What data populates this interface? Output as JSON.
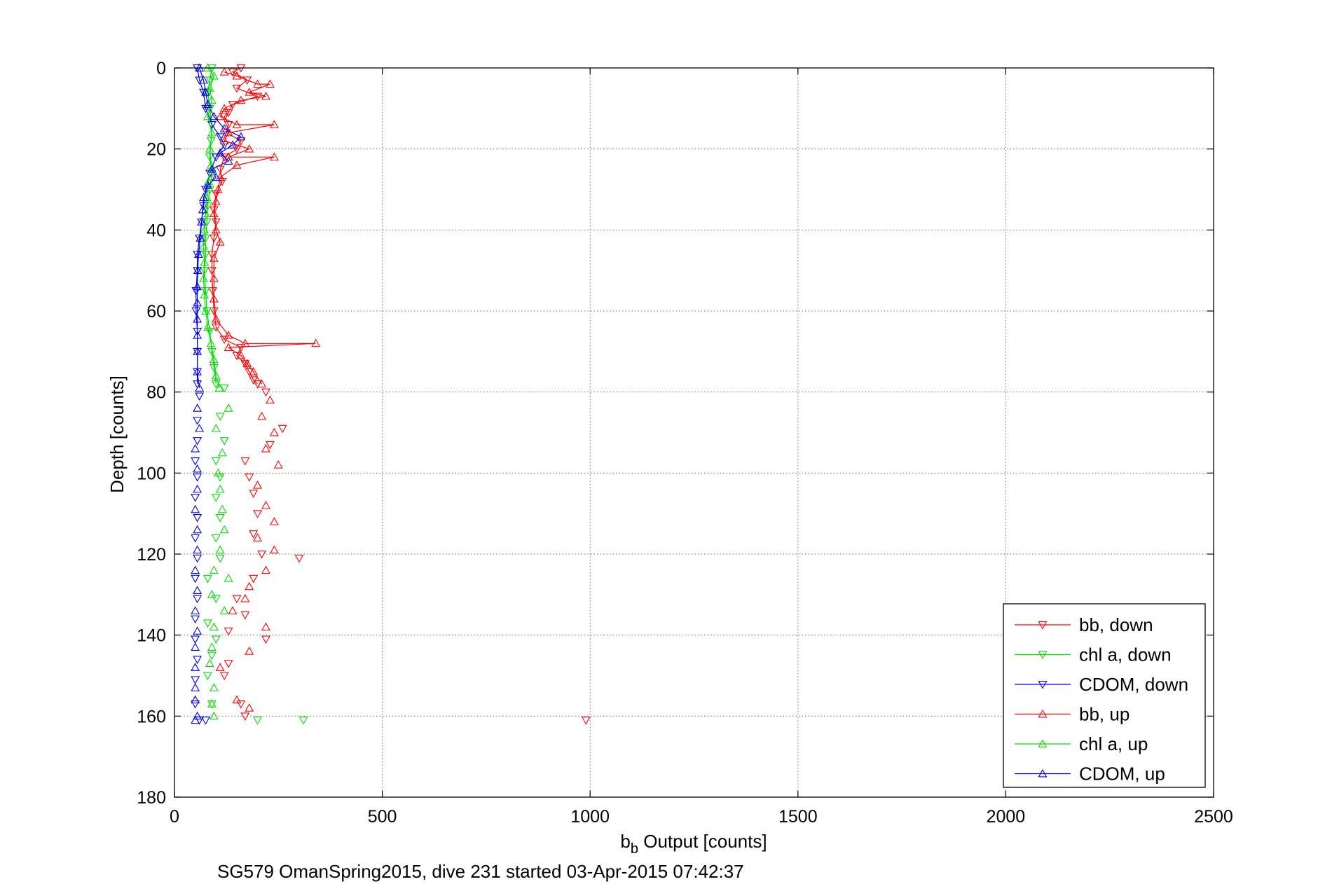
{
  "chart_data": {
    "type": "line",
    "xlabel_base": "b",
    "xlabel_sub": "b",
    "xlabel_rest": " Output [counts]",
    "ylabel": "Depth [counts]",
    "footer": "SG579 OmanSpring2015, dive 231 started 03-Apr-2015 07:42:37",
    "xlim": [
      0,
      2500
    ],
    "ylim": [
      0,
      180
    ],
    "y_reversed": true,
    "grid": true,
    "legend_position": "bottom-right",
    "x_ticks": [
      "0",
      "500",
      "1000",
      "1500",
      "2000",
      "2500"
    ],
    "y_ticks": [
      "0",
      "20",
      "40",
      "60",
      "80",
      "100",
      "120",
      "140",
      "160",
      "180"
    ],
    "series": [
      {
        "name": "bb, down",
        "color": "#ff0000",
        "marker": "triangle-down",
        "connected_points": [
          [
            160,
            0
          ],
          [
            140,
            1
          ],
          [
            175,
            3
          ],
          [
            150,
            5
          ],
          [
            200,
            7
          ],
          [
            140,
            9
          ],
          [
            130,
            11
          ],
          [
            120,
            12
          ],
          [
            130,
            14
          ],
          [
            125,
            16
          ],
          [
            160,
            18
          ],
          [
            150,
            20
          ],
          [
            120,
            22
          ],
          [
            110,
            25
          ],
          [
            115,
            28
          ],
          [
            100,
            31
          ],
          [
            95,
            35
          ],
          [
            100,
            38
          ],
          [
            95,
            42
          ],
          [
            90,
            46
          ],
          [
            90,
            50
          ],
          [
            92,
            55
          ],
          [
            95,
            60
          ],
          [
            100,
            64
          ],
          [
            120,
            67
          ],
          [
            160,
            69
          ],
          [
            150,
            71
          ],
          [
            170,
            73
          ],
          [
            180,
            75
          ],
          [
            190,
            77
          ],
          [
            200,
            78
          ]
        ],
        "scatter_points": [
          [
            220,
            80
          ],
          [
            260,
            89
          ],
          [
            230,
            93
          ],
          [
            170,
            97
          ],
          [
            180,
            101
          ],
          [
            190,
            105
          ],
          [
            200,
            110
          ],
          [
            190,
            115
          ],
          [
            210,
            120
          ],
          [
            300,
            121
          ],
          [
            190,
            126
          ],
          [
            150,
            131
          ],
          [
            170,
            135
          ],
          [
            130,
            139
          ],
          [
            220,
            141
          ],
          [
            130,
            147
          ],
          [
            120,
            150
          ],
          [
            160,
            157
          ],
          [
            170,
            160
          ],
          [
            990,
            161
          ]
        ]
      },
      {
        "name": "chl a, down",
        "color": "#00dd00",
        "marker": "triangle-down",
        "connected_points": [
          [
            90,
            0
          ],
          [
            85,
            3
          ],
          [
            80,
            6
          ],
          [
            85,
            10
          ],
          [
            90,
            14
          ],
          [
            88,
            18
          ],
          [
            85,
            22
          ],
          [
            90,
            26
          ],
          [
            85,
            30
          ],
          [
            80,
            34
          ],
          [
            78,
            38
          ],
          [
            75,
            42
          ],
          [
            75,
            46
          ],
          [
            72,
            50
          ],
          [
            75,
            55
          ],
          [
            78,
            60
          ],
          [
            85,
            65
          ],
          [
            90,
            70
          ],
          [
            95,
            74
          ],
          [
            100,
            78
          ]
        ],
        "scatter_points": [
          [
            120,
            79
          ],
          [
            110,
            86
          ],
          [
            120,
            92
          ],
          [
            100,
            97
          ],
          [
            110,
            101
          ],
          [
            100,
            106
          ],
          [
            110,
            111
          ],
          [
            100,
            116
          ],
          [
            110,
            121
          ],
          [
            80,
            126
          ],
          [
            100,
            131
          ],
          [
            80,
            137
          ],
          [
            100,
            141
          ],
          [
            90,
            145
          ],
          [
            80,
            150
          ],
          [
            90,
            157
          ],
          [
            200,
            161
          ],
          [
            310,
            161
          ]
        ]
      },
      {
        "name": "CDOM, down",
        "color": "#0000ee",
        "marker": "triangle-down",
        "connected_points": [
          [
            55,
            0
          ],
          [
            60,
            3
          ],
          [
            70,
            6
          ],
          [
            75,
            10
          ],
          [
            90,
            14
          ],
          [
            110,
            17
          ],
          [
            120,
            19
          ],
          [
            100,
            22
          ],
          [
            85,
            26
          ],
          [
            75,
            30
          ],
          [
            70,
            34
          ],
          [
            65,
            38
          ],
          [
            60,
            42
          ],
          [
            55,
            46
          ],
          [
            55,
            50
          ],
          [
            52,
            55
          ],
          [
            52,
            60
          ],
          [
            55,
            65
          ],
          [
            55,
            70
          ],
          [
            55,
            75
          ],
          [
            55,
            78
          ]
        ],
        "scatter_points": [
          [
            60,
            81
          ],
          [
            55,
            87
          ],
          [
            55,
            92
          ],
          [
            50,
            97
          ],
          [
            55,
            101
          ],
          [
            50,
            106
          ],
          [
            55,
            111
          ],
          [
            50,
            116
          ],
          [
            55,
            121
          ],
          [
            50,
            126
          ],
          [
            55,
            131
          ],
          [
            50,
            136
          ],
          [
            50,
            141
          ],
          [
            55,
            146
          ],
          [
            50,
            151
          ],
          [
            50,
            157
          ],
          [
            75,
            161
          ],
          [
            60,
            161
          ]
        ]
      },
      {
        "name": "bb, up",
        "color": "#ff0000",
        "marker": "triangle-up",
        "connected_points": [
          [
            120,
            1
          ],
          [
            150,
            2
          ],
          [
            200,
            4
          ],
          [
            230,
            4
          ],
          [
            180,
            6
          ],
          [
            220,
            7
          ],
          [
            160,
            8
          ],
          [
            120,
            10
          ],
          [
            110,
            12
          ],
          [
            150,
            14
          ],
          [
            240,
            14
          ],
          [
            130,
            16
          ],
          [
            120,
            18
          ],
          [
            180,
            20
          ],
          [
            130,
            22
          ],
          [
            240,
            22
          ],
          [
            150,
            24
          ],
          [
            110,
            27
          ],
          [
            105,
            30
          ],
          [
            100,
            33
          ],
          [
            95,
            36
          ],
          [
            100,
            40
          ],
          [
            110,
            43
          ],
          [
            95,
            47
          ],
          [
            95,
            52
          ],
          [
            95,
            57
          ],
          [
            100,
            62
          ],
          [
            130,
            66
          ],
          [
            170,
            68
          ],
          [
            340,
            68
          ],
          [
            130,
            69
          ],
          [
            160,
            71
          ],
          [
            175,
            73
          ],
          [
            190,
            75
          ],
          [
            210,
            78
          ]
        ],
        "scatter_points": [
          [
            230,
            82
          ],
          [
            210,
            86
          ],
          [
            240,
            90
          ],
          [
            220,
            94
          ],
          [
            250,
            98
          ],
          [
            200,
            103
          ],
          [
            220,
            108
          ],
          [
            240,
            112
          ],
          [
            200,
            116
          ],
          [
            240,
            119
          ],
          [
            220,
            124
          ],
          [
            180,
            128
          ],
          [
            170,
            131
          ],
          [
            140,
            134
          ],
          [
            220,
            138
          ],
          [
            180,
            144
          ],
          [
            110,
            148
          ],
          [
            150,
            156
          ],
          [
            180,
            158
          ]
        ]
      },
      {
        "name": "chl a, up",
        "color": "#00dd00",
        "marker": "triangle-up",
        "connected_points": [
          [
            80,
            0
          ],
          [
            95,
            2
          ],
          [
            85,
            5
          ],
          [
            90,
            8
          ],
          [
            80,
            12
          ],
          [
            90,
            16
          ],
          [
            85,
            20
          ],
          [
            88,
            24
          ],
          [
            82,
            28
          ],
          [
            78,
            32
          ],
          [
            75,
            36
          ],
          [
            72,
            40
          ],
          [
            70,
            44
          ],
          [
            72,
            48
          ],
          [
            70,
            52
          ],
          [
            72,
            56
          ],
          [
            75,
            60
          ],
          [
            80,
            64
          ],
          [
            88,
            68
          ],
          [
            95,
            72
          ],
          [
            100,
            76
          ],
          [
            108,
            79
          ]
        ],
        "scatter_points": [
          [
            130,
            84
          ],
          [
            100,
            89
          ],
          [
            115,
            95
          ],
          [
            105,
            100
          ],
          [
            110,
            104
          ],
          [
            115,
            109
          ],
          [
            120,
            114
          ],
          [
            110,
            119
          ],
          [
            95,
            124
          ],
          [
            130,
            126
          ],
          [
            90,
            130
          ],
          [
            120,
            134
          ],
          [
            95,
            138
          ],
          [
            90,
            143
          ],
          [
            85,
            147
          ],
          [
            95,
            153
          ],
          [
            90,
            157
          ],
          [
            95,
            160
          ]
        ]
      },
      {
        "name": "CDOM, up",
        "color": "#0000ee",
        "marker": "triangle-up",
        "connected_points": [
          [
            60,
            0
          ],
          [
            70,
            3
          ],
          [
            75,
            6
          ],
          [
            80,
            9
          ],
          [
            95,
            12
          ],
          [
            120,
            15
          ],
          [
            160,
            17
          ],
          [
            140,
            19
          ],
          [
            110,
            21
          ],
          [
            130,
            23
          ],
          [
            90,
            25
          ],
          [
            100,
            27
          ],
          [
            80,
            29
          ],
          [
            70,
            32
          ],
          [
            68,
            35
          ],
          [
            65,
            38
          ],
          [
            62,
            42
          ],
          [
            58,
            46
          ],
          [
            56,
            50
          ],
          [
            55,
            54
          ],
          [
            55,
            58
          ],
          [
            55,
            62
          ],
          [
            55,
            66
          ],
          [
            55,
            70
          ],
          [
            55,
            75
          ],
          [
            60,
            79
          ]
        ],
        "scatter_points": [
          [
            55,
            84
          ],
          [
            60,
            89
          ],
          [
            50,
            94
          ],
          [
            55,
            99
          ],
          [
            55,
            104
          ],
          [
            50,
            109
          ],
          [
            55,
            114
          ],
          [
            55,
            119
          ],
          [
            50,
            124
          ],
          [
            55,
            129
          ],
          [
            50,
            134
          ],
          [
            55,
            139
          ],
          [
            50,
            143
          ],
          [
            50,
            148
          ],
          [
            50,
            153
          ],
          [
            50,
            156
          ],
          [
            55,
            160
          ],
          [
            50,
            161
          ]
        ]
      }
    ]
  }
}
